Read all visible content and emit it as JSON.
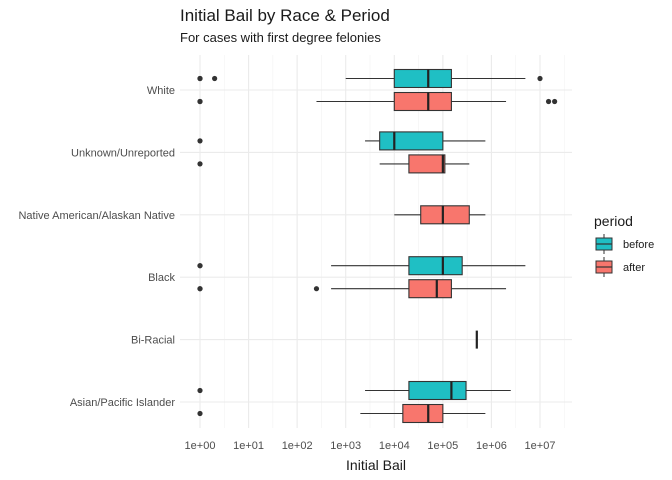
{
  "chart_data": {
    "type": "boxplot",
    "title": "Initial Bail by Race & Period",
    "subtitle": "For cases with first degree felonies",
    "xlabel": "Initial Bail",
    "ylabel": "",
    "x_scale": "log10",
    "xlim": [
      1,
      20000000
    ],
    "x_ticks": [
      1,
      10,
      100,
      1000,
      10000,
      100000,
      1000000,
      10000000
    ],
    "x_tick_labels": [
      "1e+00",
      "1e+01",
      "1e+02",
      "1e+03",
      "1e+04",
      "1e+05",
      "1e+06",
      "1e+07"
    ],
    "categories": [
      "White",
      "Unknown/Unreported",
      "Native American/Alaskan Native",
      "Black",
      "Bi-Racial",
      "Asian/Pacific Islander"
    ],
    "legend": {
      "title": "period",
      "position": "right",
      "entries": [
        {
          "label": "before",
          "color": "#1fbfc4"
        },
        {
          "label": "after",
          "color": "#f8766d"
        }
      ]
    },
    "grid": true,
    "boxes": [
      {
        "category": "White",
        "period": "before",
        "lower_whisker": 1000,
        "q1": 10000,
        "median": 50000,
        "q3": 150000,
        "upper_whisker": 5000000,
        "outliers": [
          1,
          1,
          2,
          10000000
        ]
      },
      {
        "category": "White",
        "period": "after",
        "lower_whisker": 250,
        "q1": 10000,
        "median": 50000,
        "q3": 150000,
        "upper_whisker": 2000000,
        "outliers": [
          1,
          1,
          15000000,
          20000000
        ]
      },
      {
        "category": "Unknown/Unreported",
        "period": "before",
        "lower_whisker": 2500,
        "q1": 5000,
        "median": 10000,
        "q3": 100000,
        "upper_whisker": 750000,
        "outliers": [
          1
        ]
      },
      {
        "category": "Unknown/Unreported",
        "period": "after",
        "lower_whisker": 5000,
        "q1": 20000,
        "median": 100000,
        "q3": 110000,
        "upper_whisker": 350000,
        "outliers": [
          1
        ]
      },
      {
        "category": "Native American/Alaskan Native",
        "period": "after",
        "lower_whisker": 10000,
        "q1": 35000,
        "median": 100000,
        "q3": 350000,
        "upper_whisker": 750000,
        "outliers": []
      },
      {
        "category": "Black",
        "period": "before",
        "lower_whisker": 500,
        "q1": 20000,
        "median": 100000,
        "q3": 250000,
        "upper_whisker": 5000000,
        "outliers": [
          1,
          1
        ]
      },
      {
        "category": "Black",
        "period": "after",
        "lower_whisker": 500,
        "q1": 20000,
        "median": 75000,
        "q3": 150000,
        "upper_whisker": 2000000,
        "outliers": [
          1,
          1,
          250
        ]
      },
      {
        "category": "Bi-Racial",
        "period": "after",
        "lower_whisker": 500000,
        "q1": 500000,
        "median": 500000,
        "q3": 500000,
        "upper_whisker": 500000,
        "outliers": []
      },
      {
        "category": "Asian/Pacific Islander",
        "period": "before",
        "lower_whisker": 2500,
        "q1": 20000,
        "median": 150000,
        "q3": 300000,
        "upper_whisker": 2500000,
        "outliers": [
          1
        ]
      },
      {
        "category": "Asian/Pacific Islander",
        "period": "after",
        "lower_whisker": 2000,
        "q1": 15000,
        "median": 50000,
        "q3": 100000,
        "upper_whisker": 750000,
        "outliers": [
          1
        ]
      }
    ]
  }
}
